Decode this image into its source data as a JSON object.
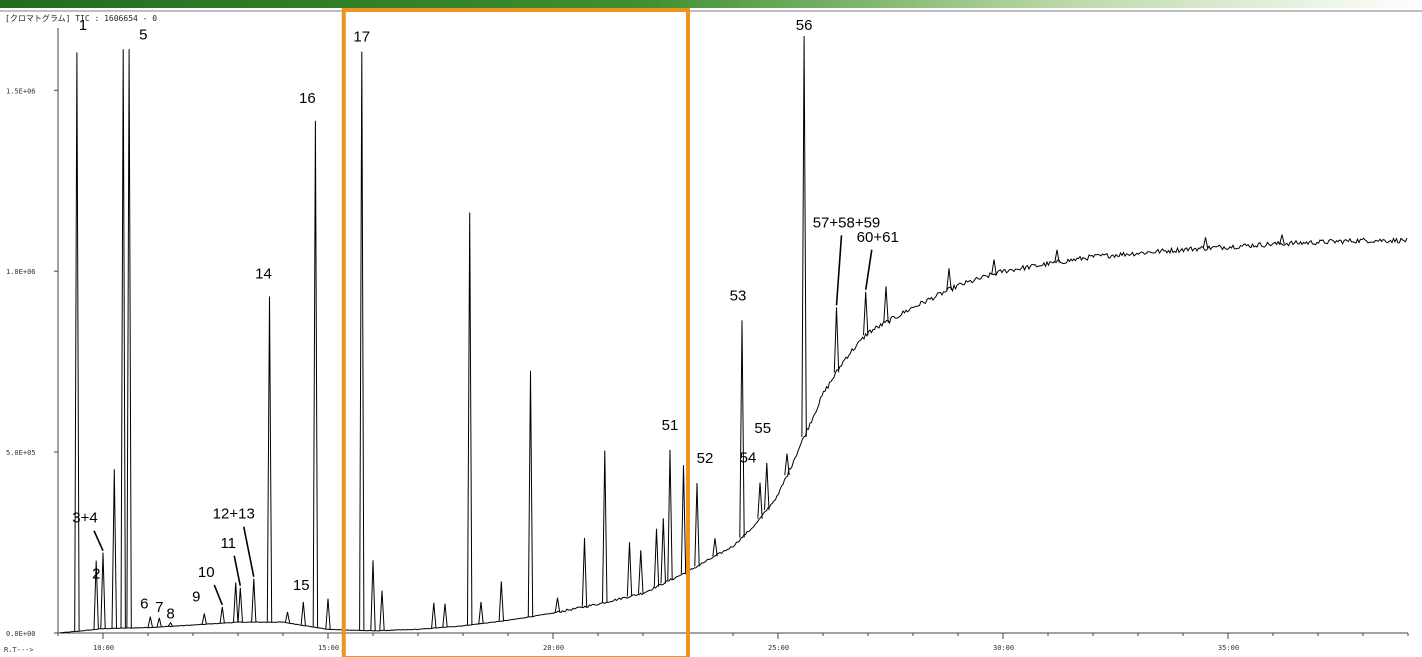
{
  "chart_data": {
    "type": "line",
    "title": "",
    "header": "[クロマトグラム]  TIC : 1606654 - 0",
    "xlabel": "R.T--->",
    "ylabel": "",
    "xlim": [
      9.0,
      39.0
    ],
    "ylim": [
      0,
      1650000
    ],
    "x_ticks": [
      {
        "value": 10,
        "label": "10:00"
      },
      {
        "value": 15,
        "label": "15:00"
      },
      {
        "value": 20,
        "label": "20:00"
      },
      {
        "value": 25,
        "label": "25:00"
      },
      {
        "value": 30,
        "label": "30:00"
      },
      {
        "value": 35,
        "label": "35:00"
      }
    ],
    "y_ticks": [
      {
        "value": 0,
        "label": "0.0E+00"
      },
      {
        "value": 500000,
        "label": "5.0E+05"
      },
      {
        "value": 1000000,
        "label": "1.0E+06"
      },
      {
        "value": 1500000,
        "label": "1.5E+06"
      }
    ],
    "baseline": [
      [
        9.0,
        0
      ],
      [
        9.3,
        3000
      ],
      [
        10.0,
        12000
      ],
      [
        11.0,
        15000
      ],
      [
        12.0,
        22000
      ],
      [
        13.0,
        30000
      ],
      [
        14.0,
        30000
      ],
      [
        15.0,
        10000
      ],
      [
        16.0,
        6000
      ],
      [
        17.0,
        10000
      ],
      [
        18.0,
        20000
      ],
      [
        19.0,
        35000
      ],
      [
        20.0,
        55000
      ],
      [
        21.0,
        80000
      ],
      [
        22.0,
        110000
      ],
      [
        23.0,
        170000
      ],
      [
        24.0,
        240000
      ],
      [
        24.5,
        300000
      ],
      [
        25.0,
        380000
      ],
      [
        25.5,
        520000
      ],
      [
        26.0,
        660000
      ],
      [
        26.5,
        760000
      ],
      [
        27.0,
        830000
      ],
      [
        28.0,
        900000
      ],
      [
        29.0,
        960000
      ],
      [
        30.0,
        1000000
      ],
      [
        32.0,
        1040000
      ],
      [
        34.0,
        1060000
      ],
      [
        36.0,
        1075000
      ],
      [
        38.0,
        1085000
      ],
      [
        38.9,
        1085000
      ]
    ],
    "peaks": [
      {
        "x": 9.42,
        "height": 1600000,
        "label": "1"
      },
      {
        "x": 9.85,
        "height": 190000,
        "label": "2"
      },
      {
        "x": 10.0,
        "height": 210000,
        "label": "3+4"
      },
      {
        "x": 10.25,
        "height": 440000
      },
      {
        "x": 10.45,
        "height": 1600000,
        "label": "5"
      },
      {
        "x": 10.58,
        "height": 1600000
      },
      {
        "x": 11.05,
        "height": 30000,
        "label": "6"
      },
      {
        "x": 11.25,
        "height": 25000,
        "label": "7"
      },
      {
        "x": 11.5,
        "height": 10000,
        "label": "8"
      },
      {
        "x": 12.25,
        "height": 30000,
        "label": "9"
      },
      {
        "x": 12.65,
        "height": 45000,
        "label": "10"
      },
      {
        "x": 12.95,
        "height": 110000
      },
      {
        "x": 13.05,
        "height": 95000,
        "label": "11"
      },
      {
        "x": 13.35,
        "height": 120000,
        "label": "12+13"
      },
      {
        "x": 13.7,
        "height": 900000,
        "label": "14"
      },
      {
        "x": 14.1,
        "height": 30000
      },
      {
        "x": 14.45,
        "height": 65000,
        "label": "15"
      },
      {
        "x": 14.72,
        "height": 1400000,
        "label": "16"
      },
      {
        "x": 15.0,
        "height": 85000
      },
      {
        "x": 15.75,
        "height": 1600000,
        "label": "17"
      },
      {
        "x": 16.0,
        "height": 195000
      },
      {
        "x": 16.2,
        "height": 110000
      },
      {
        "x": 17.35,
        "height": 70000
      },
      {
        "x": 17.6,
        "height": 65000
      },
      {
        "x": 18.15,
        "height": 1140000
      },
      {
        "x": 18.4,
        "height": 60000
      },
      {
        "x": 18.85,
        "height": 110000
      },
      {
        "x": 19.5,
        "height": 680000
      },
      {
        "x": 20.1,
        "height": 40000
      },
      {
        "x": 20.7,
        "height": 190000
      },
      {
        "x": 21.15,
        "height": 420000
      },
      {
        "x": 21.7,
        "height": 150000
      },
      {
        "x": 21.95,
        "height": 120000
      },
      {
        "x": 22.3,
        "height": 160000
      },
      {
        "x": 22.45,
        "height": 180000
      },
      {
        "x": 22.6,
        "height": 360000,
        "label": "51"
      },
      {
        "x": 22.9,
        "height": 300000
      },
      {
        "x": 23.2,
        "height": 230000,
        "label": "52"
      },
      {
        "x": 23.6,
        "height": 50000
      },
      {
        "x": 24.2,
        "height": 600000,
        "label": "53"
      },
      {
        "x": 24.6,
        "height": 100000,
        "label": "54"
      },
      {
        "x": 24.75,
        "height": 130000,
        "label": "55"
      },
      {
        "x": 25.2,
        "height": 60000
      },
      {
        "x": 25.58,
        "height": 1150000,
        "label": "56"
      },
      {
        "x": 26.3,
        "height": 180000,
        "label": "57+58+59"
      },
      {
        "x": 26.95,
        "height": 120000,
        "label": "60+61"
      },
      {
        "x": 27.4,
        "height": 100000
      },
      {
        "x": 28.8,
        "height": 60000
      },
      {
        "x": 29.8,
        "height": 40000
      },
      {
        "x": 31.2,
        "height": 35000
      },
      {
        "x": 34.5,
        "height": 30000
      },
      {
        "x": 36.2,
        "height": 25000
      }
    ],
    "highlight_region": {
      "x_start": 15.35,
      "x_end": 23.0,
      "color": "#f0921e"
    },
    "trace_color": "#000000"
  }
}
